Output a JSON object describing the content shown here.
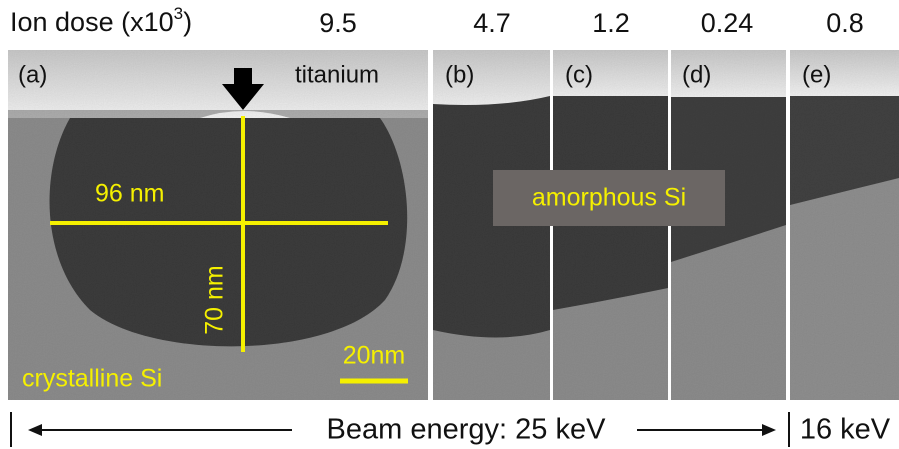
{
  "header": {
    "ion_dose_label": "Ion dose (x10",
    "ion_dose_exponent": "3",
    "ion_dose_close": ")",
    "doses": [
      "9.5",
      "4.7",
      "1.2",
      "0.24",
      "0.8"
    ]
  },
  "panels": [
    {
      "label": "(a)"
    },
    {
      "label": "(b)"
    },
    {
      "label": "(c)"
    },
    {
      "label": "(d)"
    },
    {
      "label": "(e)"
    }
  ],
  "annotations": {
    "titanium": "titanium",
    "width": "96 nm",
    "depth": "70 nm",
    "scale_bar": "20nm",
    "crystalline": "crystalline Si",
    "amorphous": "amorphous Si"
  },
  "footer": {
    "beam_25": "Beam energy: 25 keV",
    "beam_16": "16 keV"
  }
}
